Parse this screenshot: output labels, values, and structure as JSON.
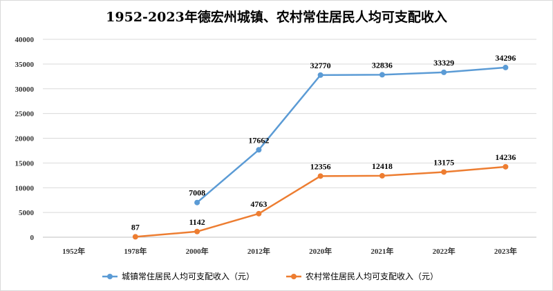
{
  "chart_data": {
    "type": "line",
    "title": "1952-2023年德宏州城镇、农村常住居民人均可支配收入",
    "categories": [
      "1952年",
      "1978年",
      "2000年",
      "2012年",
      "2020年",
      "2021年",
      "2022年",
      "2023年"
    ],
    "ylim": [
      0,
      40000
    ],
    "yticks": [
      0,
      5000,
      10000,
      15000,
      20000,
      25000,
      30000,
      35000,
      40000
    ],
    "grid": true,
    "legend_position": "bottom",
    "series": [
      {
        "name": "城镇常住居民人均可支配收入（元）",
        "color": "#5b9bd5",
        "values": [
          null,
          null,
          7008,
          17662,
          32770,
          32836,
          33329,
          34296
        ]
      },
      {
        "name": "农村常住居民人均可支配收入（元）",
        "color": "#ed7d31",
        "values": [
          null,
          87,
          1142,
          4763,
          12356,
          12418,
          13175,
          14236
        ]
      }
    ]
  }
}
